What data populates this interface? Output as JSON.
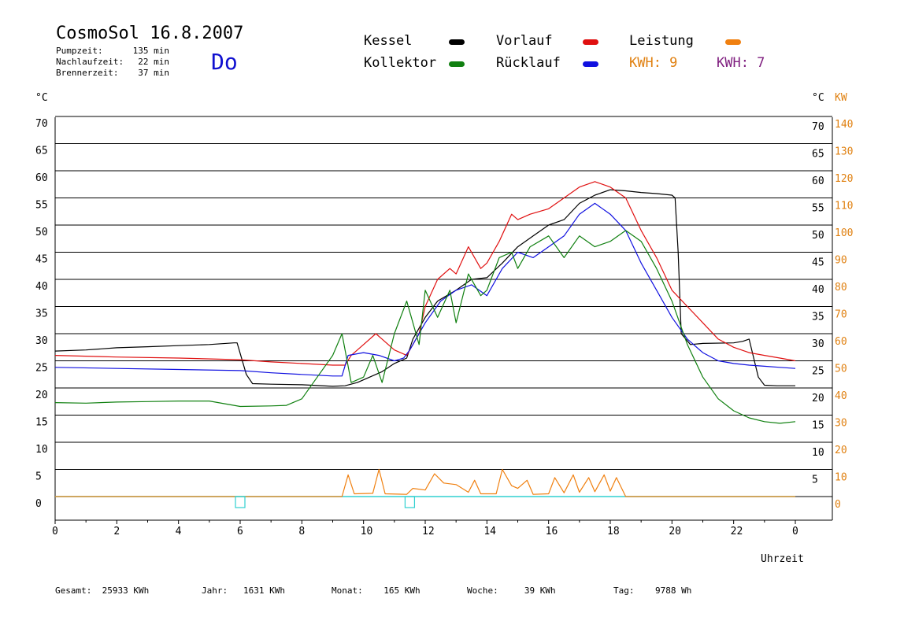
{
  "header": {
    "title": "CosmoSol 16.8.2007",
    "weekday": "Do",
    "stats": [
      {
        "label": "Pumpzeit:",
        "value": "135 min"
      },
      {
        "label": "Nachlaufzeit:",
        "value": "22 min"
      },
      {
        "label": "Brennerzeit:",
        "value": "37 min"
      }
    ]
  },
  "legend": {
    "items": [
      {
        "label": "Kessel",
        "color": "#000000"
      },
      {
        "label": "Vorlauf",
        "color": "#e01010"
      },
      {
        "label": "Leistung",
        "color": "#f08010"
      },
      {
        "label": "Kollektor",
        "color": "#108010"
      },
      {
        "label": "Rücklauf",
        "color": "#1010e0"
      }
    ],
    "kwh": [
      {
        "label": "KWH: 9",
        "color": "#e08010"
      },
      {
        "label": "KWH: 7",
        "color": "#802080"
      }
    ]
  },
  "footer": [
    {
      "label": "Gesamt:",
      "value": "25933 KWh"
    },
    {
      "label": "Jahr:",
      "value": "1631 KWh"
    },
    {
      "label": "Monat:",
      "value": "165 KWh"
    },
    {
      "label": "Woche:",
      "value": "39 KWh"
    },
    {
      "label": "Tag:",
      "value": "9788 Wh"
    }
  ],
  "chart_data": {
    "type": "line",
    "xlabel": "Uhrzeit",
    "ylabel_left": "°C",
    "ylabel_right": "°C",
    "ylabel_right2": "KW",
    "xlim": [
      0,
      24
    ],
    "ylim": [
      -4,
      70
    ],
    "xticks": [
      "0",
      "2",
      "4",
      "6",
      "8",
      "10",
      "12",
      "14",
      "16",
      "18",
      "20",
      "22",
      "0"
    ],
    "yticks_left": [
      "0",
      "5",
      "10",
      "15",
      "20",
      "25",
      "30",
      "35",
      "40",
      "45",
      "50",
      "55",
      "60",
      "65",
      "70"
    ],
    "yticks_right": [
      "",
      "5",
      "10",
      "15",
      "20",
      "25",
      "30",
      "35",
      "40",
      "45",
      "50",
      "55",
      "60",
      "65",
      "70"
    ],
    "yticks_right2": [
      "0",
      "10",
      "20",
      "30",
      "40",
      "50",
      "60",
      "70",
      "80",
      "90",
      "100",
      "110",
      "120",
      "130",
      "140"
    ],
    "grid": true,
    "series": [
      {
        "name": "Kessel",
        "color": "#000000",
        "x": [
          0,
          1,
          2,
          3,
          4,
          5,
          5.8,
          5.9,
          6.2,
          6.4,
          7,
          8,
          9,
          9.4,
          9.8,
          10.2,
          10.6,
          11,
          11.4,
          11.6,
          12,
          12.4,
          12.7,
          13,
          13.5,
          14,
          14.5,
          15,
          15.5,
          16,
          16.5,
          17,
          17.5,
          18,
          18.5,
          19,
          19.5,
          20,
          20.1,
          20.2,
          20.3,
          20.6,
          21,
          22,
          22.3,
          22.5,
          22.8,
          23,
          23.4,
          24
        ],
        "y": [
          26.8,
          27.0,
          27.4,
          27.6,
          27.8,
          28.0,
          28.3,
          28.3,
          22.5,
          20.8,
          20.7,
          20.6,
          20.3,
          20.4,
          21.0,
          22.0,
          23.0,
          24.5,
          25.5,
          29,
          33,
          36,
          37,
          38,
          40,
          40.3,
          43,
          46,
          48,
          50,
          51,
          54,
          55.5,
          56.5,
          56.3,
          56.0,
          55.8,
          55.5,
          55.0,
          45,
          30,
          28,
          28.2,
          28.3,
          28.6,
          29,
          22,
          20.5,
          20.4,
          20.4
        ]
      },
      {
        "name": "Vorlauf",
        "color": "#e01010",
        "x": [
          0,
          2,
          4,
          6,
          7,
          8,
          9,
          9.4,
          9.6,
          10,
          10.4,
          10.6,
          11,
          11.4,
          11.8,
          12,
          12.4,
          12.8,
          13,
          13.4,
          13.8,
          14,
          14.4,
          14.8,
          15,
          15.4,
          16,
          16.5,
          17,
          17.5,
          18,
          18.5,
          19,
          19.5,
          20,
          20.5,
          21,
          21.5,
          22,
          22.5,
          23,
          23.5,
          24
        ],
        "y": [
          26,
          25.7,
          25.5,
          25.2,
          24.8,
          24.5,
          24.2,
          24.2,
          26,
          28,
          30,
          29,
          27,
          26,
          30,
          35,
          40,
          42,
          41,
          46,
          42,
          43,
          47,
          52,
          51,
          52,
          53,
          55,
          57,
          58,
          57,
          55,
          49,
          44,
          38,
          35,
          32,
          29,
          27.5,
          26.5,
          26,
          25.5,
          25
        ]
      },
      {
        "name": "Rücklauf",
        "color": "#1010e0",
        "x": [
          0,
          2,
          4,
          6,
          7,
          8,
          9,
          9.3,
          9.5,
          10,
          10.5,
          11,
          11.3,
          11.5,
          12,
          12.5,
          13,
          13.5,
          14,
          14.5,
          15,
          15.5,
          16,
          16.5,
          17,
          17.5,
          18,
          18.5,
          19,
          19.5,
          20,
          20.5,
          21,
          21.5,
          22,
          22.5,
          23,
          23.5,
          24
        ],
        "y": [
          23.8,
          23.6,
          23.4,
          23.2,
          22.8,
          22.5,
          22.2,
          22.2,
          26,
          26.5,
          26,
          25,
          25.5,
          27,
          32,
          36,
          38,
          39,
          37,
          42,
          45,
          44,
          46,
          48,
          52,
          54,
          52,
          49,
          43,
          38,
          33,
          29,
          26.5,
          25,
          24.5,
          24.2,
          24,
          23.8,
          23.6
        ]
      },
      {
        "name": "Kollektor",
        "color": "#108010",
        "x": [
          0,
          1,
          2,
          3,
          4,
          5,
          6,
          7,
          7.5,
          8,
          8.5,
          9,
          9.3,
          9.6,
          10,
          10.3,
          10.6,
          11,
          11.4,
          11.8,
          12,
          12.4,
          12.8,
          13,
          13.4,
          13.8,
          14,
          14.4,
          14.8,
          15,
          15.4,
          16,
          16.5,
          17,
          17.5,
          18,
          18.5,
          19,
          19.5,
          20,
          20.5,
          21,
          21.5,
          22,
          22.5,
          23,
          23.5,
          24
        ],
        "y": [
          17.3,
          17.2,
          17.4,
          17.5,
          17.6,
          17.6,
          16.6,
          16.7,
          16.8,
          18,
          22,
          26,
          30,
          21,
          22,
          26,
          21,
          30,
          36,
          28,
          38,
          33,
          38,
          32,
          41,
          37,
          38,
          44,
          45,
          42,
          46,
          48,
          44,
          48,
          46,
          47,
          49,
          47,
          42,
          36,
          28,
          22,
          18,
          15.8,
          14.5,
          13.8,
          13.5,
          13.8
        ]
      },
      {
        "name": "Leistung",
        "color": "#f08010",
        "x": [
          0,
          9.3,
          9.5,
          9.7,
          10.3,
          10.5,
          10.7,
          11.4,
          11.6,
          12,
          12.3,
          12.6,
          13,
          13.4,
          13.6,
          13.8,
          14.3,
          14.5,
          14.8,
          15,
          15.3,
          15.5,
          16,
          16.2,
          16.5,
          16.8,
          17,
          17.3,
          17.5,
          17.8,
          18,
          18.2,
          18.5,
          24
        ],
        "y": [
          0,
          0,
          4,
          0.5,
          0.6,
          5,
          0.5,
          0.4,
          1.5,
          1.2,
          4.2,
          2.5,
          2.2,
          0.8,
          3,
          0.5,
          0.5,
          5,
          2,
          1.5,
          3,
          0.4,
          0.5,
          3.5,
          0.7,
          4,
          0.8,
          3.5,
          0.9,
          4,
          1,
          3.5,
          0,
          0
        ]
      }
    ]
  }
}
